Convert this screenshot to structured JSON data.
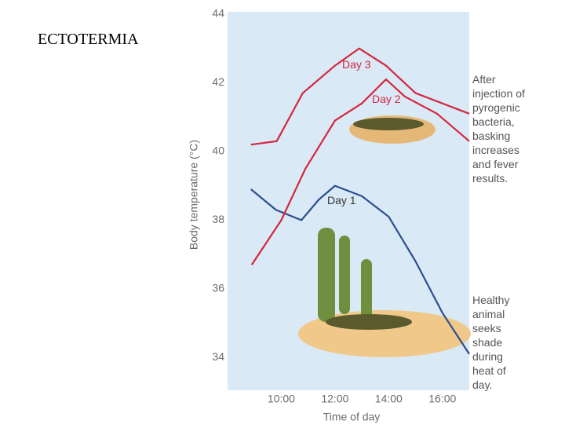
{
  "slide_title": "ECTOTERMIA",
  "chart_data": {
    "type": "line",
    "y_label": "Body temperature (°C)",
    "x_label": "Time of day",
    "xlim": [
      8,
      17
    ],
    "xticks": [
      {
        "value": 10,
        "label": "10:00"
      },
      {
        "value": 12,
        "label": "12:00"
      },
      {
        "value": 14,
        "label": "14:00"
      },
      {
        "value": 16,
        "label": "16:00"
      }
    ],
    "ylim": [
      33,
      44
    ],
    "yticks": [
      34,
      36,
      38,
      40,
      42,
      44
    ],
    "series": [
      {
        "name": "Day 1",
        "color": "#2d4e8e",
        "x": [
          8.87,
          9.8,
          10.75,
          11.4,
          12,
          13,
          14,
          15,
          16,
          17
        ],
        "values": [
          38.9,
          38.3,
          38.0,
          38.6,
          39.0,
          38.7,
          38.1,
          36.8,
          35.3,
          34.1
        ]
      },
      {
        "name": "Day 2",
        "color": "#d4263f",
        "x": [
          8.9,
          10,
          10.9,
          12,
          13,
          13.9,
          14.6,
          15.8,
          17
        ],
        "values": [
          36.7,
          38.0,
          39.5,
          40.9,
          41.4,
          42.1,
          41.6,
          41.1,
          40.3
        ]
      },
      {
        "name": "Day 3",
        "color": "#d4263f",
        "x": [
          8.87,
          9.83,
          10.8,
          12,
          12.9,
          13.9,
          15,
          17
        ],
        "values": [
          40.2,
          40.3,
          41.7,
          42.5,
          43.0,
          42.5,
          41.7,
          41.1
        ]
      }
    ],
    "annotations": [
      [
        "After",
        "injection of",
        "pyrogenic",
        "bacteria,",
        "basking",
        "increases",
        "and fever",
        "results."
      ],
      [
        "Healthy",
        "animal",
        "seeks",
        "shade",
        "during",
        "heat of",
        "day."
      ]
    ]
  }
}
